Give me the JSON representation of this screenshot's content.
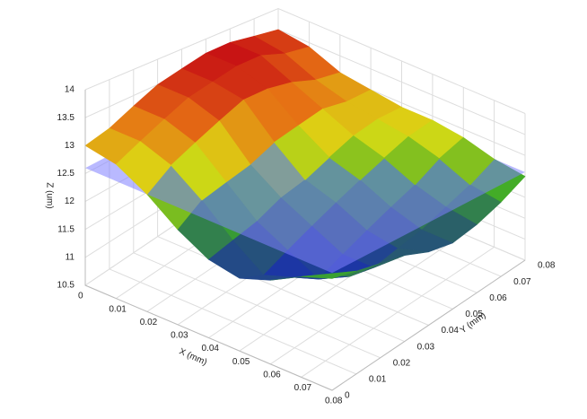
{
  "chart_data": {
    "type": "surface3d",
    "x_label": "X (mm)",
    "y_label": "Y (mm)",
    "z_label": "Z (um)",
    "x": [
      0,
      0.01,
      0.02,
      0.03,
      0.04,
      0.05,
      0.06,
      0.07,
      0.08
    ],
    "y": [
      0,
      0.01,
      0.02,
      0.03,
      0.04,
      0.05,
      0.06,
      0.07,
      0.08
    ],
    "z": [
      [
        13.0,
        13.1,
        13.3,
        13.5,
        13.6,
        13.7,
        13.7,
        13.6,
        13.5
      ],
      [
        12.9,
        13.1,
        13.3,
        13.5,
        13.6,
        13.7,
        13.7,
        13.5,
        13.4
      ],
      [
        12.6,
        12.9,
        13.1,
        13.3,
        13.5,
        13.5,
        13.4,
        13.2,
        13.1
      ],
      [
        12.2,
        12.5,
        12.6,
        12.7,
        12.9,
        13.0,
        13.1,
        13.0,
        13.0
      ],
      [
        11.9,
        12.0,
        12.1,
        12.3,
        12.4,
        12.6,
        12.8,
        12.9,
        12.9
      ],
      [
        11.8,
        11.6,
        11.8,
        12.0,
        12.2,
        12.4,
        12.6,
        12.8,
        12.9
      ],
      [
        12.0,
        11.8,
        11.5,
        11.7,
        11.9,
        12.1,
        12.3,
        12.6,
        12.8
      ],
      [
        12.3,
        12.1,
        11.8,
        11.7,
        11.8,
        11.9,
        12.1,
        12.3,
        12.6
      ],
      [
        12.5,
        12.4,
        12.3,
        12.2,
        12.0,
        11.9,
        12.0,
        12.2,
        12.5
      ]
    ],
    "plane_z": 12.6,
    "plane_color": "#7f7fff",
    "xlim": [
      0,
      0.08
    ],
    "ylim": [
      0,
      0.08
    ],
    "zlim": [
      10.5,
      14
    ],
    "xticks": [
      0,
      0.01,
      0.02,
      0.03,
      0.04,
      0.05,
      0.06,
      0.07,
      0.08
    ],
    "yticks": [
      0,
      0.01,
      0.02,
      0.03,
      0.04,
      0.05,
      0.06,
      0.07,
      0.08
    ],
    "zticks": [
      10.5,
      11,
      11.5,
      12,
      12.5,
      13,
      13.5,
      14
    ],
    "grid": true
  }
}
